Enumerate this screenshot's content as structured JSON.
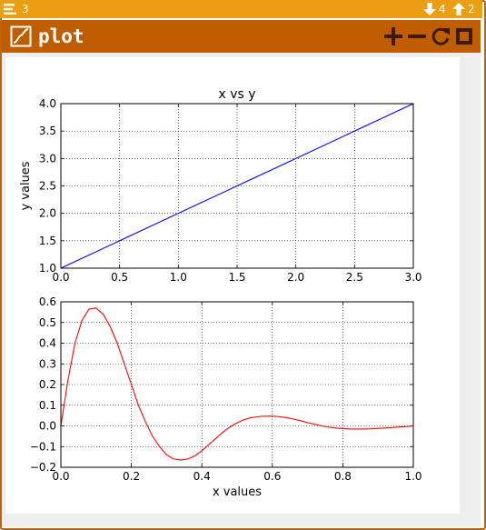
{
  "topbar": {
    "menu_icon": "hamburger-icon",
    "notification_count": "3",
    "download_icon": "arrow-down-icon",
    "download_count": "4",
    "upload_icon": "arrow-up-icon",
    "upload_count": "2"
  },
  "window": {
    "icon": "plot-icon",
    "title": "plot",
    "buttons": [
      {
        "name": "zoom-in-button",
        "icon": "plus-icon"
      },
      {
        "name": "zoom-out-button",
        "icon": "minus-icon"
      },
      {
        "name": "refresh-button",
        "icon": "refresh-icon"
      },
      {
        "name": "stop-button",
        "icon": "stop-icon"
      }
    ]
  },
  "colors": {
    "accent_bar": "#eb9e12",
    "title_bar": "#bf5d00",
    "series_top": "#0000ff",
    "series_bottom": "#ff0000"
  },
  "chart_data": [
    {
      "type": "line",
      "title": "x vs y",
      "xlabel": "",
      "ylabel": "y values",
      "xlim": [
        0.0,
        3.0
      ],
      "ylim": [
        1.0,
        4.0
      ],
      "xticks": [
        "0.0",
        "0.5",
        "1.0",
        "1.5",
        "2.0",
        "2.5",
        "3.0"
      ],
      "yticks": [
        "1.0",
        "1.5",
        "2.0",
        "2.5",
        "3.0",
        "3.5",
        "4.0"
      ],
      "grid": true,
      "series": [
        {
          "color": "#0000ff",
          "x": [
            0,
            1,
            2,
            3
          ],
          "y": [
            1,
            2,
            3,
            4
          ]
        }
      ]
    },
    {
      "type": "line",
      "title": "",
      "xlabel": "x values",
      "ylabel": "",
      "xlim": [
        0.0,
        1.0
      ],
      "ylim": [
        -0.2,
        0.6
      ],
      "xticks": [
        "0.0",
        "0.2",
        "0.4",
        "0.6",
        "0.8",
        "1.0"
      ],
      "yticks": [
        "−0.2",
        "−0.1",
        "0.0",
        "0.1",
        "0.2",
        "0.3",
        "0.4",
        "0.5",
        "0.6"
      ],
      "grid": true,
      "series": [
        {
          "color": "#ff0000",
          "x": [
            0.0,
            0.02,
            0.04,
            0.06,
            0.08,
            0.1,
            0.12,
            0.14,
            0.16,
            0.18,
            0.2,
            0.22,
            0.24,
            0.26,
            0.28,
            0.3,
            0.32,
            0.34,
            0.36,
            0.38,
            0.4,
            0.42,
            0.44,
            0.46,
            0.48,
            0.5,
            0.52,
            0.54,
            0.56,
            0.58,
            0.6,
            0.62,
            0.64,
            0.66,
            0.68,
            0.7,
            0.72,
            0.74,
            0.76,
            0.78,
            0.8,
            0.82,
            0.84,
            0.86,
            0.88,
            0.9,
            0.92,
            0.94,
            0.96,
            0.98,
            1.0
          ],
          "y": [
            0.0,
            0.22,
            0.4,
            0.51,
            0.565,
            0.57,
            0.54,
            0.48,
            0.4,
            0.3,
            0.2,
            0.1,
            0.02,
            -0.05,
            -0.1,
            -0.14,
            -0.16,
            -0.165,
            -0.16,
            -0.145,
            -0.12,
            -0.09,
            -0.06,
            -0.03,
            -0.005,
            0.015,
            0.03,
            0.04,
            0.045,
            0.047,
            0.047,
            0.045,
            0.04,
            0.033,
            0.025,
            0.016,
            0.008,
            0.0,
            -0.006,
            -0.01,
            -0.013,
            -0.015,
            -0.015,
            -0.015,
            -0.014,
            -0.012,
            -0.01,
            -0.008,
            -0.005,
            -0.003,
            0.0
          ]
        }
      ]
    }
  ]
}
